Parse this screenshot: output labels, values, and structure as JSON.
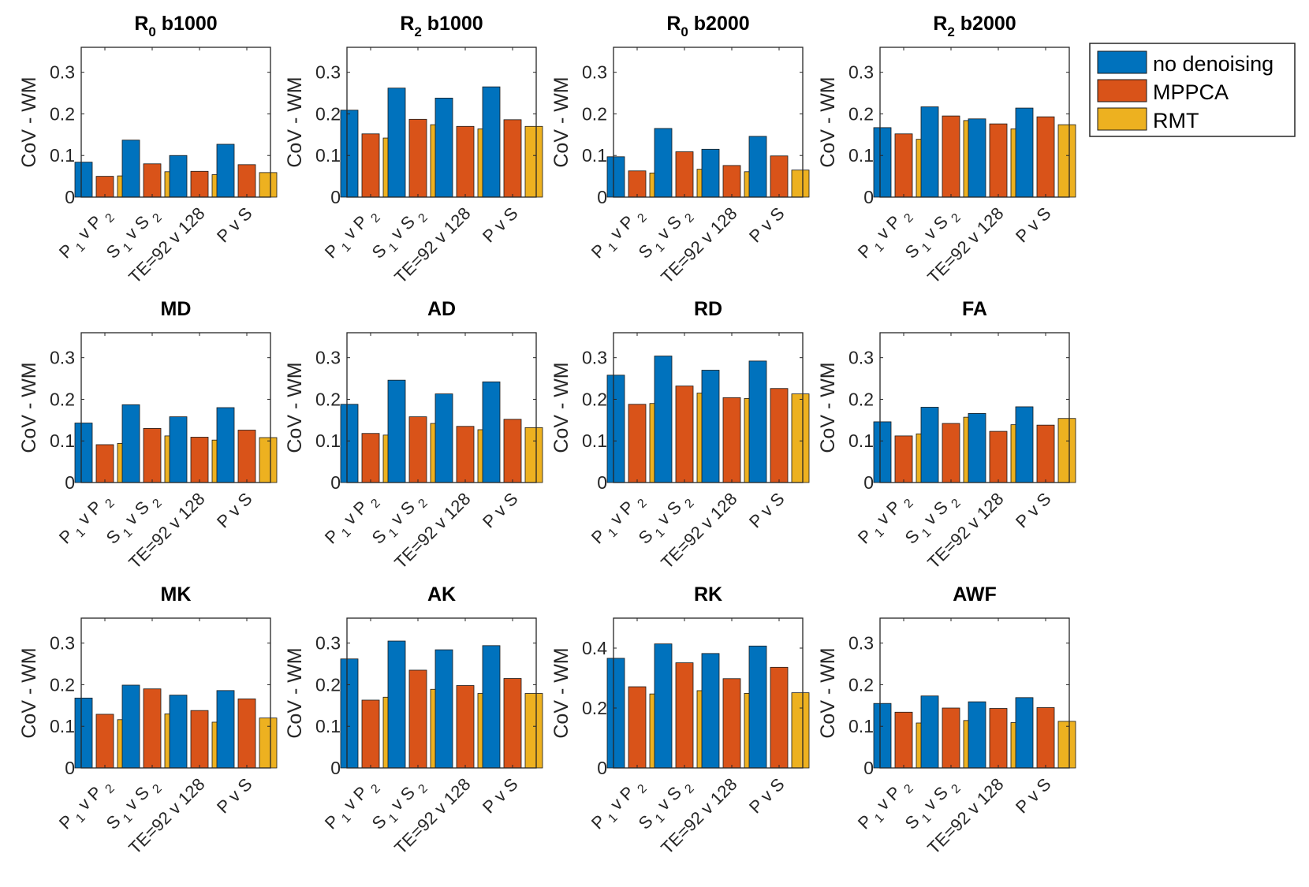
{
  "chart_data": {
    "type": "bar",
    "layout": "3x4 grid of grouped bar charts",
    "categories": [
      "P1 v P2",
      "S1 v S2",
      "TE=92 v 128",
      "P v S"
    ],
    "category_labels": [
      {
        "main": "P",
        "sub": "1",
        "mid": " v P ",
        "sub2": "2"
      },
      {
        "main": "S",
        "sub": "1",
        "mid": " v S ",
        "sub2": "2"
      },
      {
        "main": "TE=92 v 128"
      },
      {
        "main": "P v S"
      }
    ],
    "series_names": [
      "no denoising",
      "MPPCA",
      "RMT"
    ],
    "series_colors": [
      "#0072BD",
      "#D95319",
      "#EDB120"
    ],
    "legend": {
      "position": "top-right",
      "entries": [
        "no denoising",
        "MPPCA",
        "RMT"
      ]
    },
    "grid": false,
    "panels": [
      {
        "title": "R",
        "title_sub": "0",
        "title_rest": " b1000",
        "ylabel": "CoV - WM",
        "ylim": [
          0,
          0.36
        ],
        "yticks": [
          "0",
          "0.1",
          "0.2",
          "0.3"
        ],
        "ytick_values": [
          0,
          0.1,
          0.2,
          0.3
        ],
        "series": [
          {
            "name": "no denoising",
            "values": [
              0.084,
              0.137,
              0.1,
              0.127
            ]
          },
          {
            "name": "MPPCA",
            "values": [
              0.05,
              0.08,
              0.062,
              0.078
            ]
          },
          {
            "name": "RMT",
            "values": [
              0.051,
              0.061,
              0.054,
              0.059
            ]
          }
        ]
      },
      {
        "title": "R",
        "title_sub": "2",
        "title_rest": " b1000",
        "ylabel": "CoV - WM",
        "ylim": [
          0,
          0.36
        ],
        "yticks": [
          "0",
          "0.1",
          "0.2",
          "0.3"
        ],
        "ytick_values": [
          0,
          0.1,
          0.2,
          0.3
        ],
        "series": [
          {
            "name": "no denoising",
            "values": [
              0.209,
              0.262,
              0.238,
              0.265
            ]
          },
          {
            "name": "MPPCA",
            "values": [
              0.152,
              0.187,
              0.17,
              0.186
            ]
          },
          {
            "name": "RMT",
            "values": [
              0.142,
              0.174,
              0.164,
              0.17
            ]
          }
        ]
      },
      {
        "title": "R",
        "title_sub": "0",
        "title_rest": " b2000",
        "ylabel": "CoV - WM",
        "ylim": [
          0,
          0.36
        ],
        "yticks": [
          "0",
          "0.1",
          "0.2",
          "0.3"
        ],
        "ytick_values": [
          0,
          0.1,
          0.2,
          0.3
        ],
        "series": [
          {
            "name": "no denoising",
            "values": [
              0.097,
              0.165,
              0.115,
              0.146
            ]
          },
          {
            "name": "MPPCA",
            "values": [
              0.063,
              0.109,
              0.076,
              0.099
            ]
          },
          {
            "name": "RMT",
            "values": [
              0.058,
              0.067,
              0.061,
              0.065
            ]
          }
        ]
      },
      {
        "title": "R",
        "title_sub": "2",
        "title_rest": " b2000",
        "ylabel": "CoV - WM",
        "ylim": [
          0,
          0.36
        ],
        "yticks": [
          "0",
          "0.1",
          "0.2",
          "0.3"
        ],
        "ytick_values": [
          0,
          0.1,
          0.2,
          0.3
        ],
        "series": [
          {
            "name": "no denoising",
            "values": [
              0.167,
              0.217,
              0.188,
              0.214
            ]
          },
          {
            "name": "MPPCA",
            "values": [
              0.152,
              0.195,
              0.176,
              0.193
            ]
          },
          {
            "name": "RMT",
            "values": [
              0.139,
              0.184,
              0.164,
              0.174
            ]
          }
        ]
      },
      {
        "title": "MD",
        "ylabel": "CoV - WM",
        "ylim": [
          0,
          0.36
        ],
        "yticks": [
          "0",
          "0.1",
          "0.2",
          "0.3"
        ],
        "ytick_values": [
          0,
          0.1,
          0.2,
          0.3
        ],
        "series": [
          {
            "name": "no denoising",
            "values": [
              0.143,
              0.187,
              0.158,
              0.18
            ]
          },
          {
            "name": "MPPCA",
            "values": [
              0.091,
              0.13,
              0.109,
              0.126
            ]
          },
          {
            "name": "RMT",
            "values": [
              0.094,
              0.112,
              0.102,
              0.108
            ]
          }
        ]
      },
      {
        "title": "AD",
        "ylabel": "CoV - WM",
        "ylim": [
          0,
          0.36
        ],
        "yticks": [
          "0",
          "0.1",
          "0.2",
          "0.3"
        ],
        "ytick_values": [
          0,
          0.1,
          0.2,
          0.3
        ],
        "series": [
          {
            "name": "no denoising",
            "values": [
              0.188,
              0.246,
              0.213,
              0.242
            ]
          },
          {
            "name": "MPPCA",
            "values": [
              0.118,
              0.158,
              0.135,
              0.152
            ]
          },
          {
            "name": "RMT",
            "values": [
              0.114,
              0.142,
              0.127,
              0.132
            ]
          }
        ]
      },
      {
        "title": "RD",
        "ylabel": "CoV - WM",
        "ylim": [
          0,
          0.36
        ],
        "yticks": [
          "0",
          "0.1",
          "0.2",
          "0.3"
        ],
        "ytick_values": [
          0,
          0.1,
          0.2,
          0.3
        ],
        "series": [
          {
            "name": "no denoising",
            "values": [
              0.258,
              0.304,
              0.27,
              0.292
            ]
          },
          {
            "name": "MPPCA",
            "values": [
              0.188,
              0.232,
              0.204,
              0.226
            ]
          },
          {
            "name": "RMT",
            "values": [
              0.19,
              0.215,
              0.202,
              0.213
            ]
          }
        ]
      },
      {
        "title": "FA",
        "ylabel": "CoV - WM",
        "ylim": [
          0,
          0.36
        ],
        "yticks": [
          "0",
          "0.1",
          "0.2",
          "0.3"
        ],
        "ytick_values": [
          0,
          0.1,
          0.2,
          0.3
        ],
        "series": [
          {
            "name": "no denoising",
            "values": [
              0.146,
              0.181,
              0.166,
              0.182
            ]
          },
          {
            "name": "MPPCA",
            "values": [
              0.112,
              0.142,
              0.123,
              0.138
            ]
          },
          {
            "name": "RMT",
            "values": [
              0.117,
              0.157,
              0.139,
              0.154
            ]
          }
        ]
      },
      {
        "title": "MK",
        "ylabel": "CoV - WM",
        "ylim": [
          0,
          0.36
        ],
        "yticks": [
          "0",
          "0.1",
          "0.2",
          "0.3"
        ],
        "ytick_values": [
          0,
          0.1,
          0.2,
          0.3
        ],
        "series": [
          {
            "name": "no denoising",
            "values": [
              0.168,
              0.199,
              0.175,
              0.186
            ]
          },
          {
            "name": "MPPCA",
            "values": [
              0.129,
              0.19,
              0.138,
              0.166
            ]
          },
          {
            "name": "RMT",
            "values": [
              0.116,
              0.13,
              0.11,
              0.12
            ]
          }
        ]
      },
      {
        "title": "AK",
        "ylabel": "CoV - WM",
        "ylim": [
          0,
          0.36
        ],
        "yticks": [
          "0",
          "0.1",
          "0.2",
          "0.3"
        ],
        "ytick_values": [
          0,
          0.1,
          0.2,
          0.3
        ],
        "series": [
          {
            "name": "no denoising",
            "values": [
              0.262,
              0.305,
              0.284,
              0.294
            ]
          },
          {
            "name": "MPPCA",
            "values": [
              0.163,
              0.235,
              0.198,
              0.215
            ]
          },
          {
            "name": "RMT",
            "values": [
              0.17,
              0.189,
              0.179,
              0.179
            ]
          }
        ]
      },
      {
        "title": "RK",
        "ylabel": "CoV - WM",
        "ylim": [
          0,
          0.5
        ],
        "yticks": [
          "0",
          "0.2",
          "0.4"
        ],
        "ytick_values": [
          0,
          0.2,
          0.4
        ],
        "series": [
          {
            "name": "no denoising",
            "values": [
              0.366,
              0.414,
              0.382,
              0.407
            ]
          },
          {
            "name": "MPPCA",
            "values": [
              0.271,
              0.351,
              0.298,
              0.336
            ]
          },
          {
            "name": "RMT",
            "values": [
              0.247,
              0.258,
              0.249,
              0.251
            ]
          }
        ]
      },
      {
        "title": "AWF",
        "ylabel": "CoV - WM",
        "ylim": [
          0,
          0.36
        ],
        "yticks": [
          "0",
          "0.1",
          "0.2",
          "0.3"
        ],
        "ytick_values": [
          0,
          0.1,
          0.2,
          0.3
        ],
        "series": [
          {
            "name": "no denoising",
            "values": [
              0.155,
              0.173,
              0.159,
              0.169
            ]
          },
          {
            "name": "MPPCA",
            "values": [
              0.134,
              0.144,
              0.143,
              0.145
            ]
          },
          {
            "name": "RMT",
            "values": [
              0.108,
              0.114,
              0.109,
              0.112
            ]
          }
        ]
      }
    ]
  }
}
